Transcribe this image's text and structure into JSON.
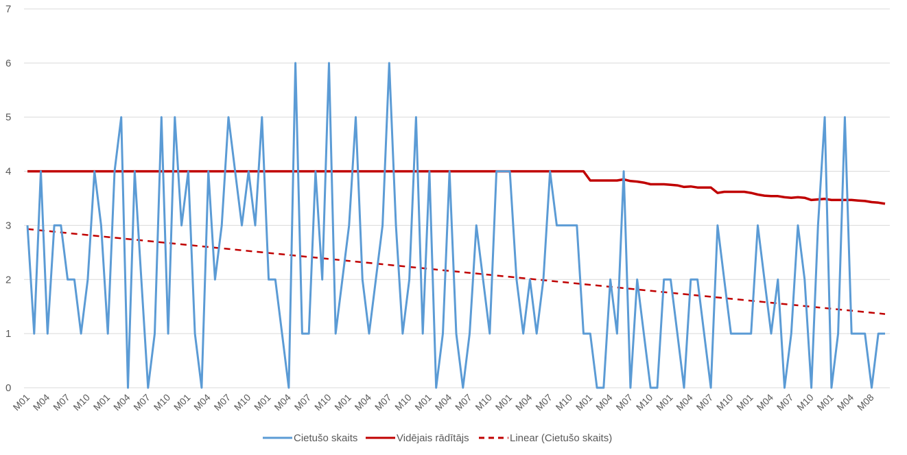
{
  "chart_data": {
    "type": "line",
    "title": "",
    "xlabel": "",
    "ylabel": "",
    "ylim": [
      0,
      7
    ],
    "yticks": [
      0,
      1,
      2,
      3,
      4,
      5,
      6,
      7
    ],
    "grid": true,
    "legend_position": "bottom",
    "x_tick_every": 3,
    "x_tick_labels": [
      "M01",
      "M04",
      "M07",
      "M10",
      "M01",
      "M04",
      "M07",
      "M10",
      "M01",
      "M04",
      "M07",
      "M10",
      "M01",
      "M04",
      "M07",
      "M10",
      "M01",
      "M04",
      "M07",
      "M10",
      "M01",
      "M04",
      "M07",
      "M10",
      "M01",
      "M04",
      "M07",
      "M10",
      "M01",
      "M04",
      "M07",
      "M10",
      "M01",
      "M04",
      "M07",
      "M10",
      "M01",
      "M04",
      "M07",
      "M10",
      "M01",
      "M04",
      "M08"
    ],
    "series": [
      {
        "name": "Cietušo skaits",
        "color": "#5b9bd5",
        "style": "solid",
        "values": [
          3,
          1,
          4,
          1,
          3,
          3,
          2,
          2,
          1,
          2,
          4,
          3,
          1,
          4,
          5,
          0,
          4,
          2,
          0,
          1,
          5,
          1,
          5,
          3,
          4,
          1,
          0,
          4,
          2,
          3,
          5,
          4,
          3,
          4,
          3,
          5,
          2,
          2,
          1,
          0,
          6,
          1,
          1,
          4,
          2,
          6,
          1,
          2,
          3,
          5,
          2,
          1,
          2,
          3,
          6,
          3,
          1,
          2,
          5,
          1,
          4,
          0,
          1,
          4,
          1,
          0,
          1,
          3,
          2,
          1,
          4,
          4,
          4,
          2,
          1,
          2,
          1,
          2,
          4,
          3,
          3,
          3,
          3,
          1,
          1,
          0,
          0,
          2,
          1,
          4,
          0,
          2,
          1,
          0,
          0,
          2,
          2,
          1,
          0,
          2,
          2,
          1,
          0,
          3,
          2,
          1,
          1,
          1,
          1,
          3,
          2,
          1,
          2,
          0,
          1,
          3,
          2,
          0,
          3,
          5,
          0,
          1,
          5,
          1,
          1,
          1,
          0,
          1,
          1
        ]
      },
      {
        "name": "Vidējais rādītājs",
        "color": "#c00000",
        "style": "solid",
        "values": [
          4,
          4,
          4,
          4,
          4,
          4,
          4,
          4,
          4,
          4,
          4,
          4,
          4,
          4,
          4,
          4,
          4,
          4,
          4,
          4,
          4,
          4,
          4,
          4,
          4,
          4,
          4,
          4,
          4,
          4,
          4,
          4,
          4,
          4,
          4,
          4,
          4,
          4,
          4,
          4,
          4,
          4,
          4,
          4,
          4,
          4,
          4,
          4,
          4,
          4,
          4,
          4,
          4,
          4,
          4,
          4,
          4,
          4,
          4,
          4,
          4,
          4,
          4,
          4,
          4,
          4,
          4,
          4,
          4,
          4,
          4,
          4,
          4,
          4,
          4,
          4,
          4,
          4,
          4,
          4,
          4,
          4,
          4,
          4,
          3.83,
          3.83,
          3.83,
          3.83,
          3.83,
          3.85,
          3.82,
          3.81,
          3.79,
          3.76,
          3.76,
          3.76,
          3.75,
          3.74,
          3.71,
          3.72,
          3.7,
          3.7,
          3.7,
          3.6,
          3.62,
          3.62,
          3.62,
          3.62,
          3.6,
          3.57,
          3.55,
          3.54,
          3.54,
          3.52,
          3.51,
          3.52,
          3.51,
          3.47,
          3.48,
          3.49,
          3.47,
          3.47,
          3.47,
          3.47,
          3.46,
          3.45,
          3.43,
          3.42,
          3.4
        ]
      },
      {
        "name": "Linear (Cietušo skaits)",
        "color": "#c00000",
        "style": "dashed",
        "trendline_of": "Cietušo skaits"
      }
    ]
  }
}
